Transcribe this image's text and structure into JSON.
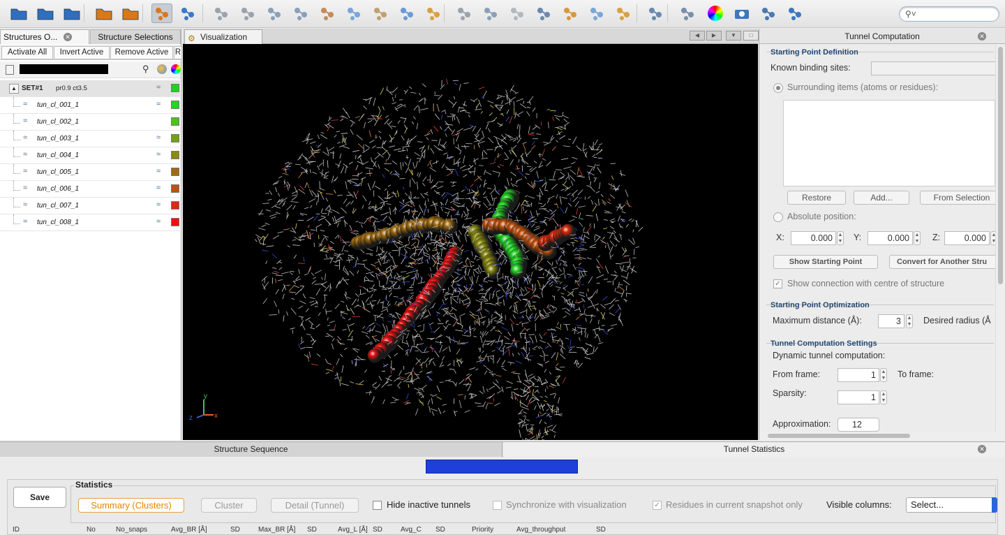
{
  "toolbar": {
    "buttons": [
      "open-folder-icon",
      "import-icon",
      "export-icon",
      "load-structure-icon",
      "copy-icon",
      "tunnel-compute-icon",
      "molecule-icon",
      "atoms-view-icon",
      "dots-view-icon",
      "wire-view-icon",
      "sticks-view-icon",
      "cylinder-view-icon",
      "balls-view-icon",
      "sphere-view-icon",
      "cartoon-view-icon",
      "ribbon-view-icon",
      "trace-view-icon",
      "branch-view-icon",
      "chain-view-icon",
      "worm-view-icon",
      "tube-view-icon",
      "backbone-view-icon",
      "sidechain-view-icon",
      "ligand-view-icon",
      "network-icon",
      "color-wheel-icon",
      "camera-icon",
      "cloud-icon",
      "settings-icon"
    ],
    "search_placeholder": ""
  },
  "left_panel": {
    "tabs": [
      "Structures O...",
      "Structure Selections"
    ],
    "actions": [
      "Activate All",
      "Invert Active",
      "Remove Active",
      "R"
    ],
    "set": {
      "name": "SET#1",
      "params": "pr0.9 ct3.5",
      "color": "#1fd21f"
    },
    "tunnels": [
      {
        "name": "tun_cl_001_1",
        "color": "#22d622"
      },
      {
        "name": "tun_cl_002_1",
        "color": "#4cc418"
      },
      {
        "name": "tun_cl_003_1",
        "color": "#6fa310"
      },
      {
        "name": "tun_cl_004_1",
        "color": "#8a8a10"
      },
      {
        "name": "tun_cl_005_1",
        "color": "#a06a0e"
      },
      {
        "name": "tun_cl_006_1",
        "color": "#c0500c"
      },
      {
        "name": "tun_cl_007_1",
        "color": "#dc2a0a"
      },
      {
        "name": "tun_cl_008_1",
        "color": "#f01010"
      }
    ]
  },
  "visualization": {
    "tab_label": "Visualization",
    "axes": {
      "x": "x",
      "y": "y",
      "z": "z"
    }
  },
  "tunnel_computation": {
    "title": "Tunnel Computation",
    "starting_point_definition": "Starting Point Definition",
    "known_binding_sites": "Known binding sites:",
    "surrounding_items": "Surrounding items (atoms or residues):",
    "restore": "Restore",
    "add": "Add...",
    "from_selection": "From Selection",
    "absolute_position": "Absolute position:",
    "x_label": "X:",
    "x_value": "0.000",
    "y_label": "Y:",
    "y_value": "0.000",
    "z_label": "Z:",
    "z_value": "0.000",
    "show_starting_point": "Show Starting Point",
    "convert": "Convert for Another Stru",
    "show_connection": "Show connection with centre of structure",
    "optimization_title": "Starting Point Optimization",
    "max_distance": "Maximum distance (Å):",
    "max_distance_value": "3",
    "desired_radius": "Desired radius (Å",
    "settings_title": "Tunnel Computation Settings",
    "dynamic": "Dynamic tunnel computation:",
    "from_frame": "From frame:",
    "from_frame_value": "1",
    "to_frame": "To frame:",
    "sparsity": "Sparsity:",
    "sparsity_value": "1",
    "approximation": "Approximation:",
    "approximation_value": "12"
  },
  "bottom": {
    "tab_sequence": "Structure Sequence",
    "tab_stats": "Tunnel Statistics",
    "progress": 1.0,
    "save": "Save",
    "statistics": "Statistics",
    "summary": "Summary (Clusters)",
    "cluster": "Cluster",
    "detail": "Detail (Tunnel)",
    "hide_inactive": "Hide inactive tunnels",
    "synchronize": "Synchronize with visualization",
    "residues_snapshot": "Residues in current snapshot only",
    "visible_columns": "Visible columns:",
    "select": "Select...",
    "columns": [
      "ID",
      "No",
      "No_snaps",
      "Avg_BR [Å]",
      "SD",
      "Max_BR [Å]",
      "SD",
      "Avg_L [Å]",
      "SD",
      "Avg_C",
      "SD",
      "Priority",
      "Avg_throughput",
      "SD"
    ]
  }
}
